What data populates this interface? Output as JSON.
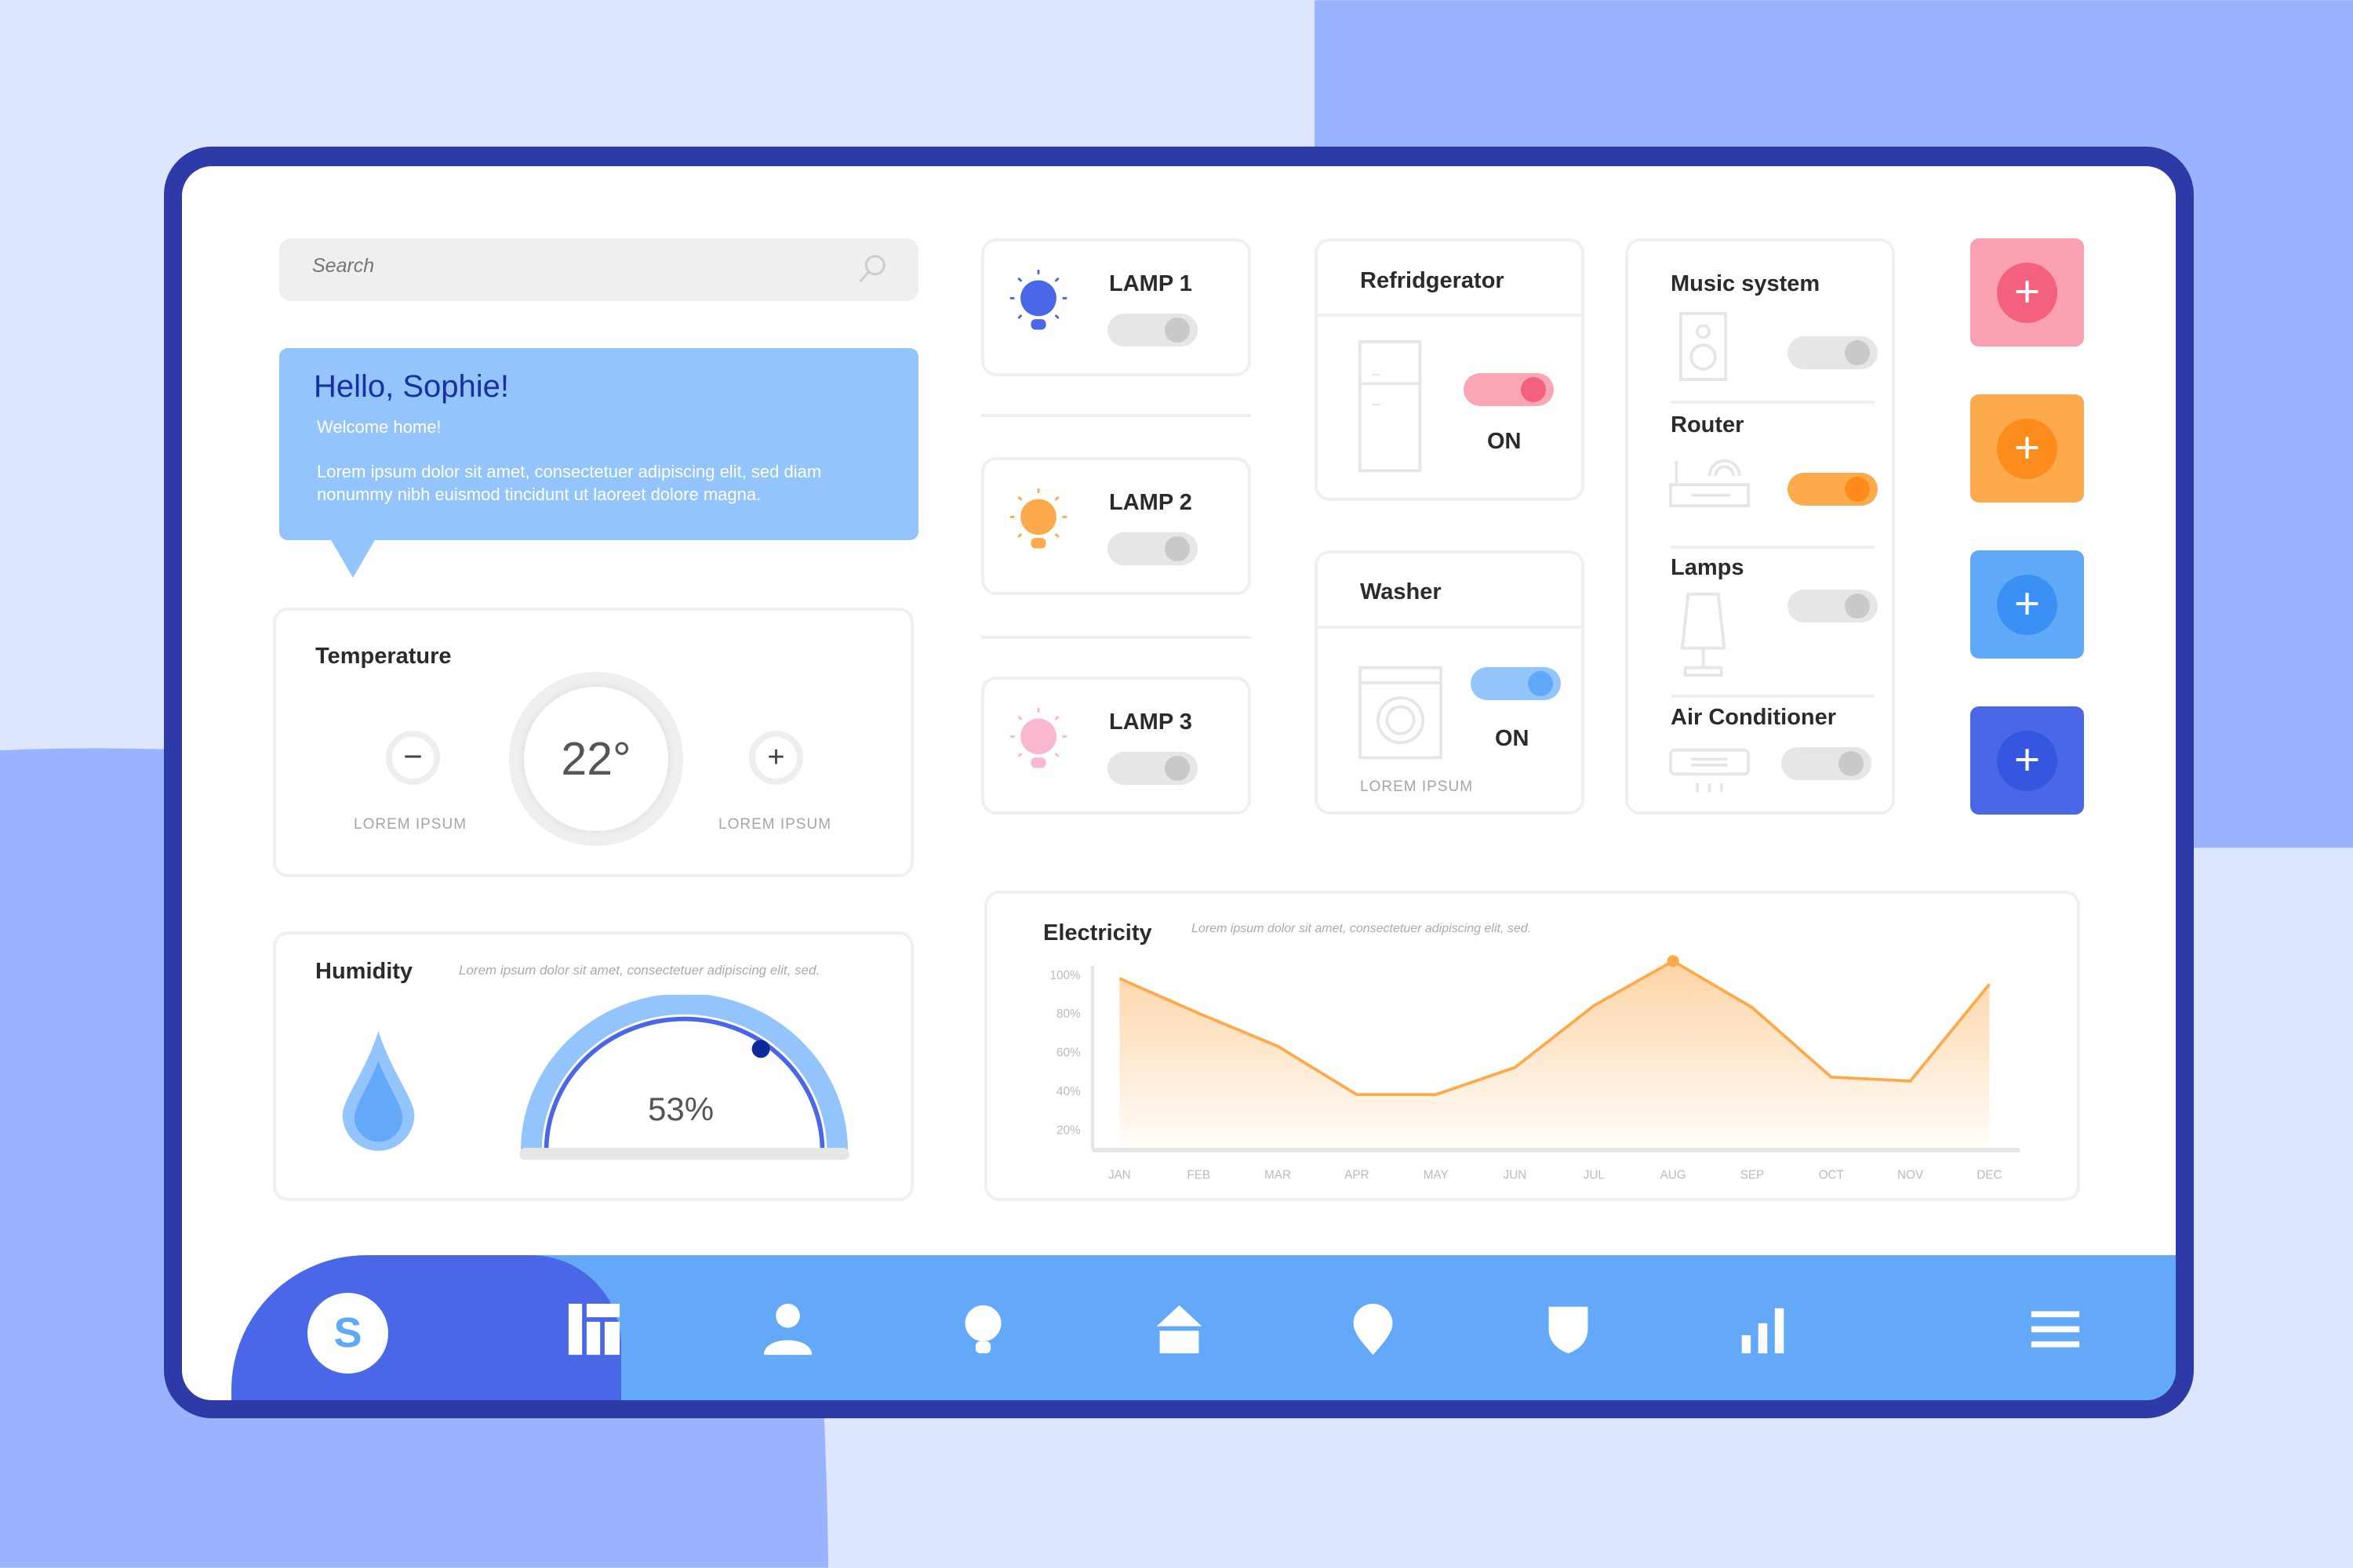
{
  "search": {
    "placeholder": "Search"
  },
  "greeting": {
    "title": "Hello, Sophie!",
    "subtitle": "Welcome home!",
    "body": "Lorem ipsum dolor sit amet, consectetuer adipiscing elit, sed diam nonummy nibh euismod tincidunt ut laoreet dolore magna."
  },
  "temperature": {
    "title": "Temperature",
    "value": "22°",
    "minus_label": "LOREM IPSUM",
    "plus_label": "LOREM IPSUM"
  },
  "humidity": {
    "title": "Humidity",
    "description": "Lorem ipsum dolor sit amet, consectetuer adipiscing elit, sed.",
    "value": "53%",
    "level": 0.53
  },
  "lamps": [
    {
      "label": "LAMP 1",
      "color": "#4a67e8",
      "on": false
    },
    {
      "label": "LAMP 2",
      "color": "#fdaa4c",
      "on": false
    },
    {
      "label": "LAMP 3",
      "color": "#f9b8d0",
      "on": false
    }
  ],
  "refrigerator": {
    "title": "Refridgerator",
    "status": "ON",
    "on": true,
    "color": "#f4617e"
  },
  "washer": {
    "title": "Washer",
    "status": "ON",
    "on": true,
    "footer": "LOREM IPSUM",
    "color": "#60a8f8"
  },
  "devices": [
    {
      "label": "Music system",
      "on": false
    },
    {
      "label": "Router",
      "on": true,
      "color": "#fd8c1d"
    },
    {
      "label": "Lamps",
      "on": false
    },
    {
      "label": "Air Conditioner",
      "on": false
    }
  ],
  "add_buttons": [
    {
      "name": "pink",
      "bg": "#f9a0b2",
      "fg": "#f4617e"
    },
    {
      "name": "orange",
      "bg": "#fdaa4c",
      "fg": "#fd8c1d"
    },
    {
      "name": "blue",
      "bg": "#60a8f8",
      "fg": "#3b90f5"
    },
    {
      "name": "indigo",
      "bg": "#4a67e8",
      "fg": "#3556e0"
    }
  ],
  "electricity": {
    "title": "Electricity",
    "description": "Lorem ipsum dolor sit amet, consectetuer adipiscing elit, sed."
  },
  "chart_data": {
    "type": "area",
    "categories": [
      "JAN",
      "FEB",
      "MAR",
      "APR",
      "MAY",
      "JUN",
      "JUL",
      "AUG",
      "SEP",
      "OCT",
      "NOV",
      "DEC"
    ],
    "values": [
      98,
      80,
      63,
      38,
      38,
      52,
      84,
      107,
      83,
      47,
      45,
      95
    ],
    "yticks": [
      "100%",
      "80%",
      "60%",
      "40%",
      "20%"
    ],
    "ytick_values": [
      100,
      80,
      60,
      40,
      20
    ],
    "highlight": "AUG",
    "color": "#fdaa4c",
    "grid": false
  },
  "nav": {
    "avatar": "S",
    "items": [
      "dashboard-icon",
      "user-icon",
      "bulb-icon",
      "home-icon",
      "location-icon",
      "shield-icon",
      "stats-icon",
      "menu-icon"
    ]
  }
}
